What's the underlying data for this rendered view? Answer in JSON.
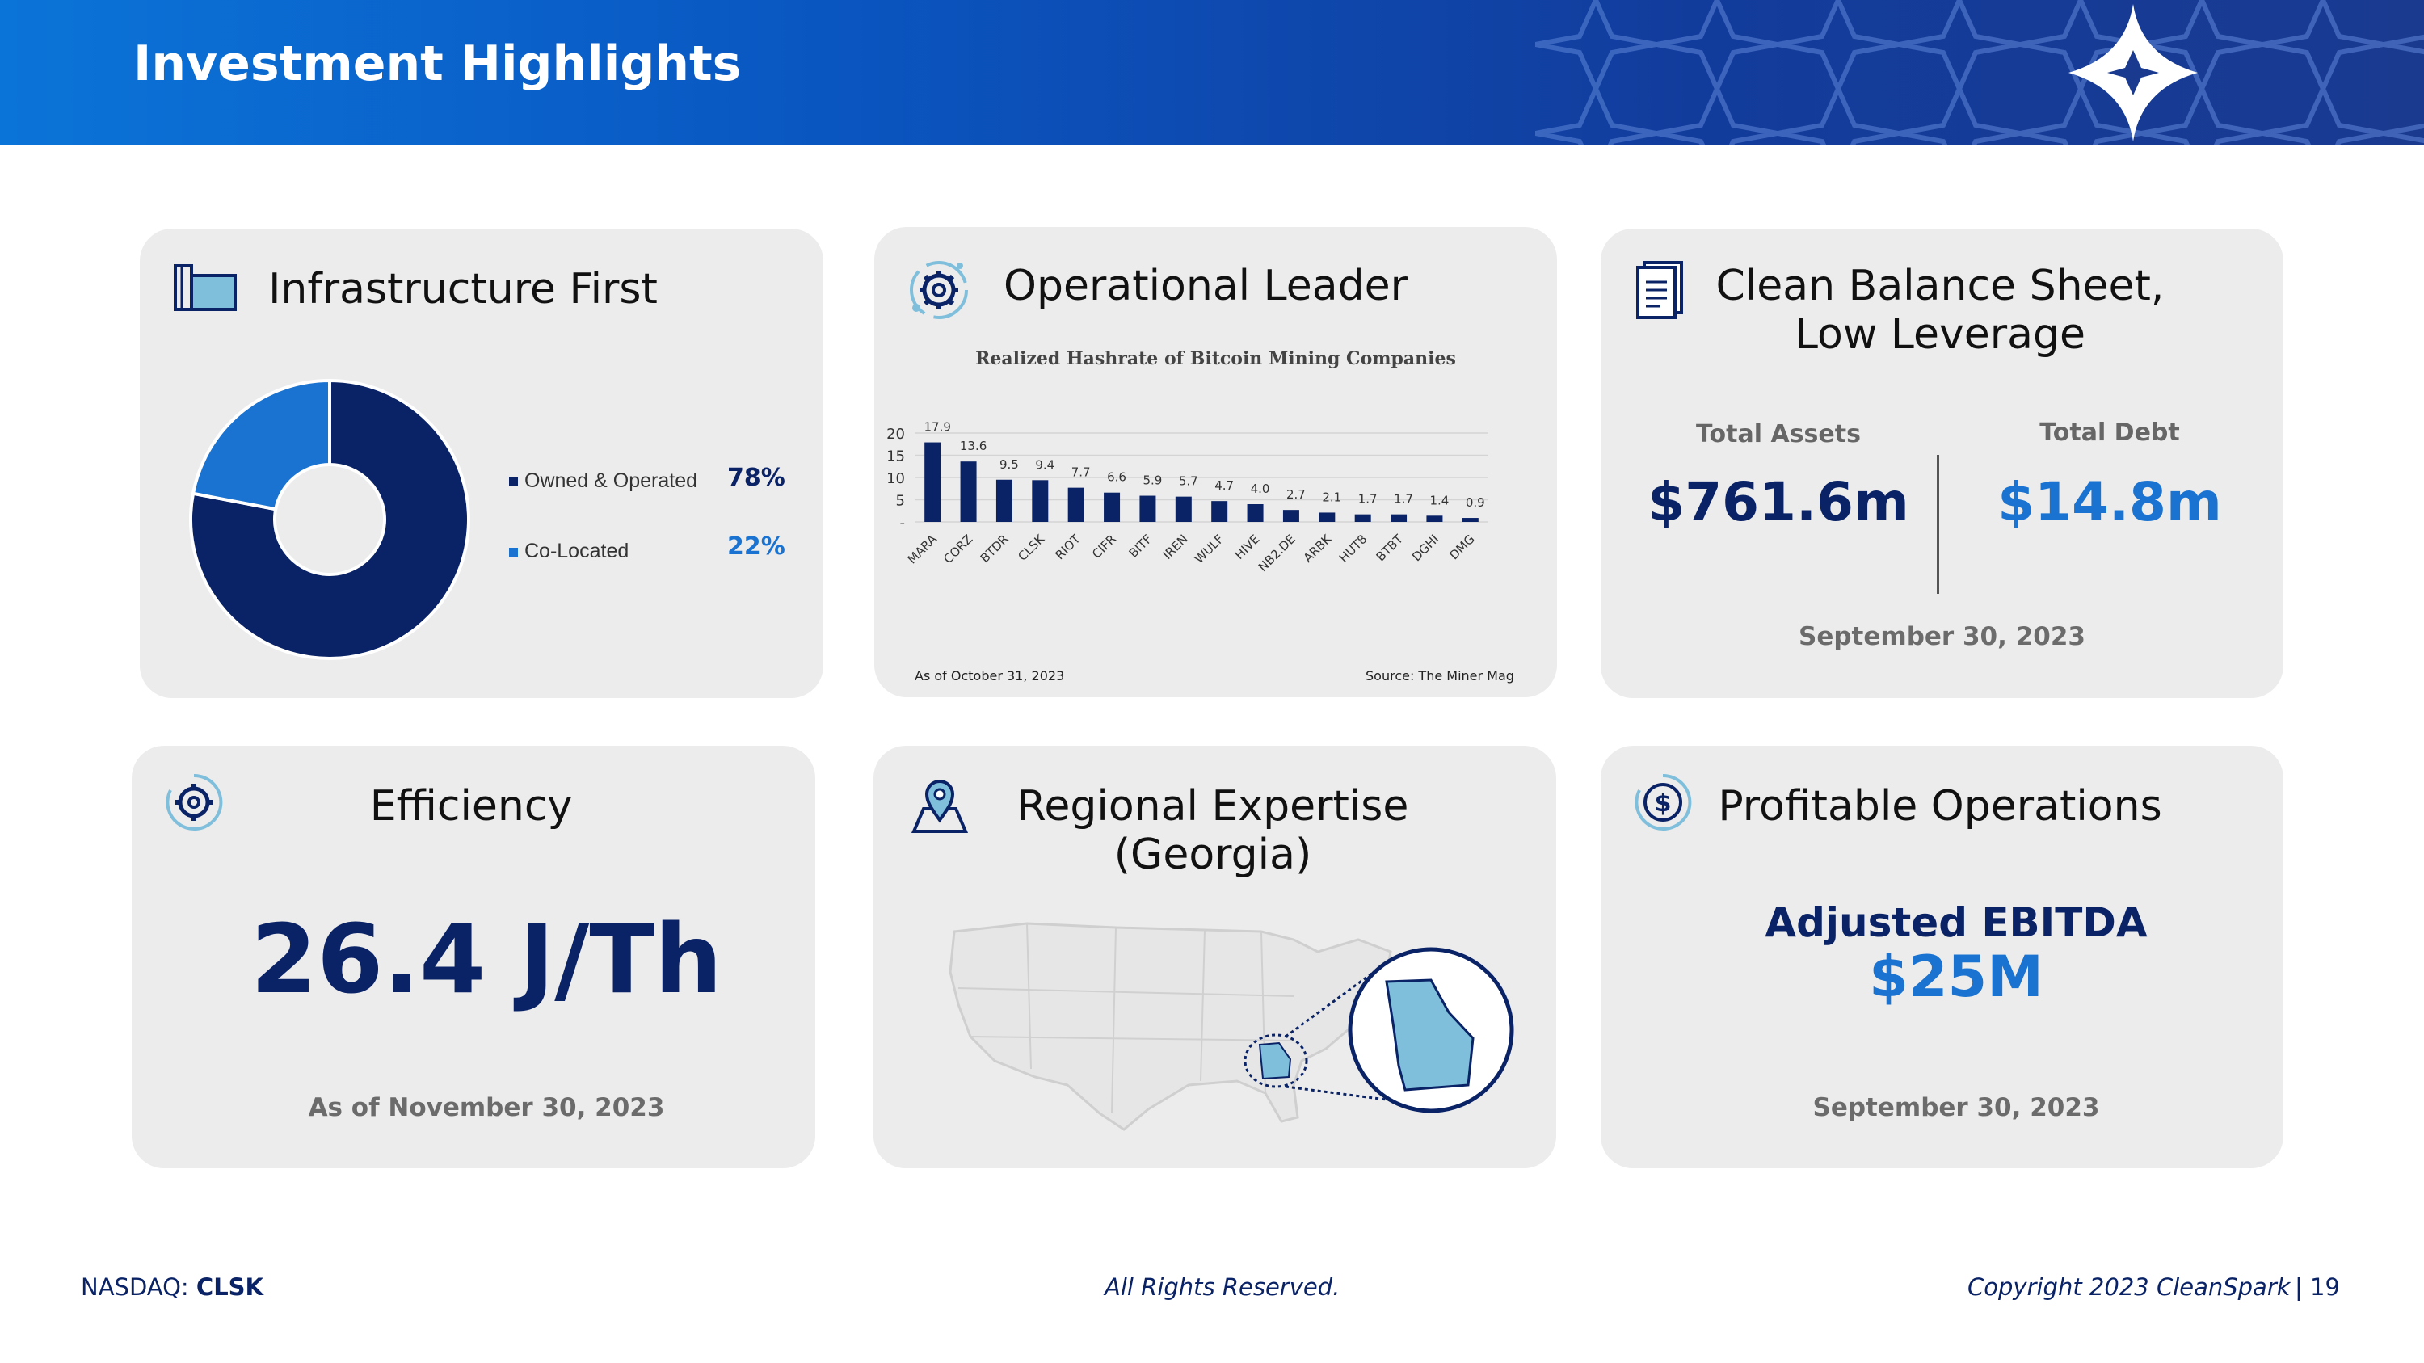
{
  "header": {
    "title": "Investment Highlights"
  },
  "colors": {
    "navy": "#0a2366",
    "blue": "#1a73d0",
    "light_blue": "#7fbfdc",
    "card_bg": "#ececec"
  },
  "cards": {
    "infrastructure": {
      "title": "Infrastructure First",
      "icon": "buildings-icon",
      "legend": [
        {
          "label": "Owned & Operated",
          "pct": "78%",
          "color": "#0a2366"
        },
        {
          "label": "Co-Located",
          "pct": "22%",
          "color": "#1a73d0"
        }
      ]
    },
    "operational": {
      "title": "Operational Leader",
      "icon": "gear-icon",
      "chart_title": "Realized Hashrate of Bitcoin Mining Companies",
      "note_left": "As of October 31, 2023",
      "note_right": "Source: The Miner Mag"
    },
    "balance": {
      "title_line1": "Clean Balance Sheet,",
      "title_line2": "Low Leverage",
      "icon": "document-icon",
      "assets_label": "Total Assets",
      "assets_value": "$761.6m",
      "debt_label": "Total Debt",
      "debt_value": "$14.8m",
      "date": "September 30, 2023"
    },
    "efficiency": {
      "title": "Efficiency",
      "icon": "gear-cycle-icon",
      "value": "26.4 J/Th",
      "date": "As of November 30, 2023"
    },
    "regional": {
      "title_line1": "Regional Expertise",
      "title_line2": "(Georgia)",
      "icon": "map-pin-icon"
    },
    "profitable": {
      "title": "Profitable Operations",
      "icon": "dollar-cycle-icon",
      "label": "Adjusted EBITDA",
      "value": "$25M",
      "date": "September 30, 2023"
    }
  },
  "chart_data": [
    {
      "type": "pie",
      "categories": [
        "Owned & Operated",
        "Co-Located"
      ],
      "values": [
        78,
        22
      ]
    },
    {
      "type": "bar",
      "title": "Realized Hashrate of Bitcoin Mining Companies",
      "categories": [
        "MARA",
        "CORZ",
        "BTDR",
        "CLSK",
        "RIOT",
        "CIFR",
        "BITF",
        "IREN",
        "WULF",
        "HIVE",
        "NB2.DE",
        "ARBK",
        "HUT8",
        "BTBT",
        "DGHI",
        "DMG"
      ],
      "values": [
        17.9,
        13.6,
        9.5,
        9.4,
        7.7,
        6.6,
        5.9,
        5.7,
        4.7,
        4.0,
        2.7,
        2.1,
        1.7,
        1.7,
        1.4,
        0.9
      ],
      "labels": [
        "17.9",
        "13.6",
        "9.5",
        "9.4",
        "7.7",
        "6.6",
        "5.9",
        "5.7",
        "4.7",
        "4.0",
        "2.7",
        "2.1",
        "1.7",
        "1.7",
        "1.4",
        "0.9"
      ],
      "yticks": [
        "-",
        "5",
        "10",
        "15",
        "20"
      ],
      "ylim": [
        0,
        20
      ],
      "grid": true
    }
  ],
  "footer": {
    "exchange_prefix": "NASDAQ: ",
    "ticker": "CLSK",
    "rights": "All Rights Reserved.",
    "copyright": "Copyright 2023 CleanSpark",
    "page": "| 19"
  }
}
